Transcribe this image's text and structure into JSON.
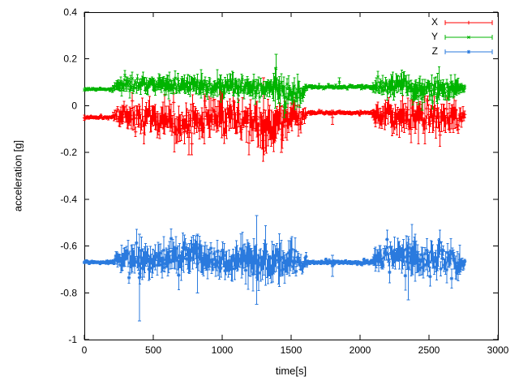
{
  "figure": {
    "background": "#ffffff",
    "border_color": "#000000",
    "text_color": "#000000"
  },
  "chart_data": {
    "type": "scatter",
    "style": "points-with-errorbars",
    "title": "",
    "xlabel": "time[s]",
    "ylabel": "acceleration [g]",
    "xlim": [
      0,
      3000
    ],
    "ylim": [
      -1,
      0.4
    ],
    "xticks": [
      0,
      500,
      1000,
      1500,
      2000,
      2500,
      3000
    ],
    "yticks": [
      0.4,
      0.2,
      0,
      -0.2,
      -0.4,
      -0.6,
      -0.8,
      -1
    ],
    "grid": false,
    "legend_position": "top-right-inside",
    "x_start": 0,
    "x_end": 2760,
    "sample_step": 6,
    "series": [
      {
        "name": "X",
        "color": "#ff0000",
        "marker": "plus",
        "baseline": -0.05,
        "envelope": [
          [
            0,
            -0.05,
            0.006
          ],
          [
            200,
            -0.05,
            0.006
          ],
          [
            240,
            -0.04,
            0.03
          ],
          [
            300,
            -0.035,
            0.04
          ],
          [
            400,
            -0.05,
            0.05
          ],
          [
            500,
            -0.04,
            0.05
          ],
          [
            600,
            -0.06,
            0.055
          ],
          [
            700,
            -0.08,
            0.065
          ],
          [
            800,
            -0.07,
            0.065
          ],
          [
            900,
            -0.05,
            0.05
          ],
          [
            1000,
            -0.05,
            0.055
          ],
          [
            1100,
            -0.06,
            0.055
          ],
          [
            1200,
            -0.07,
            0.065
          ],
          [
            1300,
            -0.09,
            0.075
          ],
          [
            1400,
            -0.08,
            0.07
          ],
          [
            1500,
            -0.06,
            0.06
          ],
          [
            1580,
            -0.05,
            0.04
          ],
          [
            1620,
            -0.03,
            0.006
          ],
          [
            2080,
            -0.03,
            0.006
          ],
          [
            2120,
            -0.04,
            0.04
          ],
          [
            2200,
            -0.05,
            0.055
          ],
          [
            2300,
            -0.05,
            0.055
          ],
          [
            2400,
            -0.06,
            0.06
          ],
          [
            2500,
            -0.05,
            0.05
          ],
          [
            2600,
            -0.05,
            0.055
          ],
          [
            2700,
            -0.04,
            0.05
          ],
          [
            2760,
            -0.04,
            0.02
          ]
        ],
        "outliers": [
          [
            760,
            -0.21,
            -0.02
          ],
          [
            1300,
            -0.18,
            0.12
          ],
          [
            1430,
            -0.2,
            0.0
          ],
          [
            1800,
            -0.08,
            -0.02
          ]
        ]
      },
      {
        "name": "Y",
        "color": "#00b400",
        "marker": "cross",
        "baseline": 0.08,
        "envelope": [
          [
            0,
            0.07,
            0.005
          ],
          [
            200,
            0.07,
            0.005
          ],
          [
            240,
            0.08,
            0.02
          ],
          [
            300,
            0.09,
            0.03
          ],
          [
            500,
            0.09,
            0.03
          ],
          [
            700,
            0.09,
            0.035
          ],
          [
            900,
            0.08,
            0.03
          ],
          [
            1100,
            0.08,
            0.035
          ],
          [
            1300,
            0.07,
            0.04
          ],
          [
            1400,
            0.08,
            0.05
          ],
          [
            1500,
            0.05,
            0.05
          ],
          [
            1580,
            0.06,
            0.03
          ],
          [
            1620,
            0.08,
            0.006
          ],
          [
            2080,
            0.08,
            0.006
          ],
          [
            2120,
            0.08,
            0.03
          ],
          [
            2300,
            0.08,
            0.04
          ],
          [
            2500,
            0.07,
            0.04
          ],
          [
            2700,
            0.08,
            0.04
          ],
          [
            2760,
            0.08,
            0.015
          ]
        ],
        "outliers": [
          [
            1390,
            0.1,
            0.22
          ],
          [
            1450,
            -0.05,
            0.05
          ],
          [
            1850,
            0.08,
            0.12
          ],
          [
            2450,
            -0.02,
            0.08
          ]
        ]
      },
      {
        "name": "Z",
        "color": "#2a7ade",
        "marker": "asterisk",
        "baseline": -0.67,
        "envelope": [
          [
            0,
            -0.67,
            0.006
          ],
          [
            200,
            -0.67,
            0.006
          ],
          [
            240,
            -0.66,
            0.03
          ],
          [
            300,
            -0.66,
            0.05
          ],
          [
            400,
            -0.67,
            0.06
          ],
          [
            500,
            -0.66,
            0.05
          ],
          [
            600,
            -0.65,
            0.055
          ],
          [
            700,
            -0.64,
            0.06
          ],
          [
            800,
            -0.63,
            0.06
          ],
          [
            900,
            -0.65,
            0.05
          ],
          [
            1000,
            -0.66,
            0.05
          ],
          [
            1100,
            -0.66,
            0.06
          ],
          [
            1200,
            -0.66,
            0.07
          ],
          [
            1300,
            -0.67,
            0.08
          ],
          [
            1400,
            -0.67,
            0.07
          ],
          [
            1500,
            -0.66,
            0.06
          ],
          [
            1580,
            -0.67,
            0.04
          ],
          [
            1620,
            -0.67,
            0.008
          ],
          [
            2080,
            -0.67,
            0.008
          ],
          [
            2120,
            -0.66,
            0.04
          ],
          [
            2200,
            -0.64,
            0.05
          ],
          [
            2300,
            -0.64,
            0.06
          ],
          [
            2400,
            -0.65,
            0.06
          ],
          [
            2500,
            -0.66,
            0.05
          ],
          [
            2600,
            -0.66,
            0.055
          ],
          [
            2700,
            -0.67,
            0.05
          ],
          [
            2760,
            -0.67,
            0.02
          ]
        ],
        "outliers": [
          [
            400,
            -0.92,
            -0.55
          ],
          [
            820,
            -0.8,
            -0.55
          ],
          [
            1250,
            -0.85,
            -0.47
          ],
          [
            1800,
            -0.73,
            -0.64
          ],
          [
            2350,
            -0.83,
            -0.56
          ]
        ]
      }
    ]
  }
}
